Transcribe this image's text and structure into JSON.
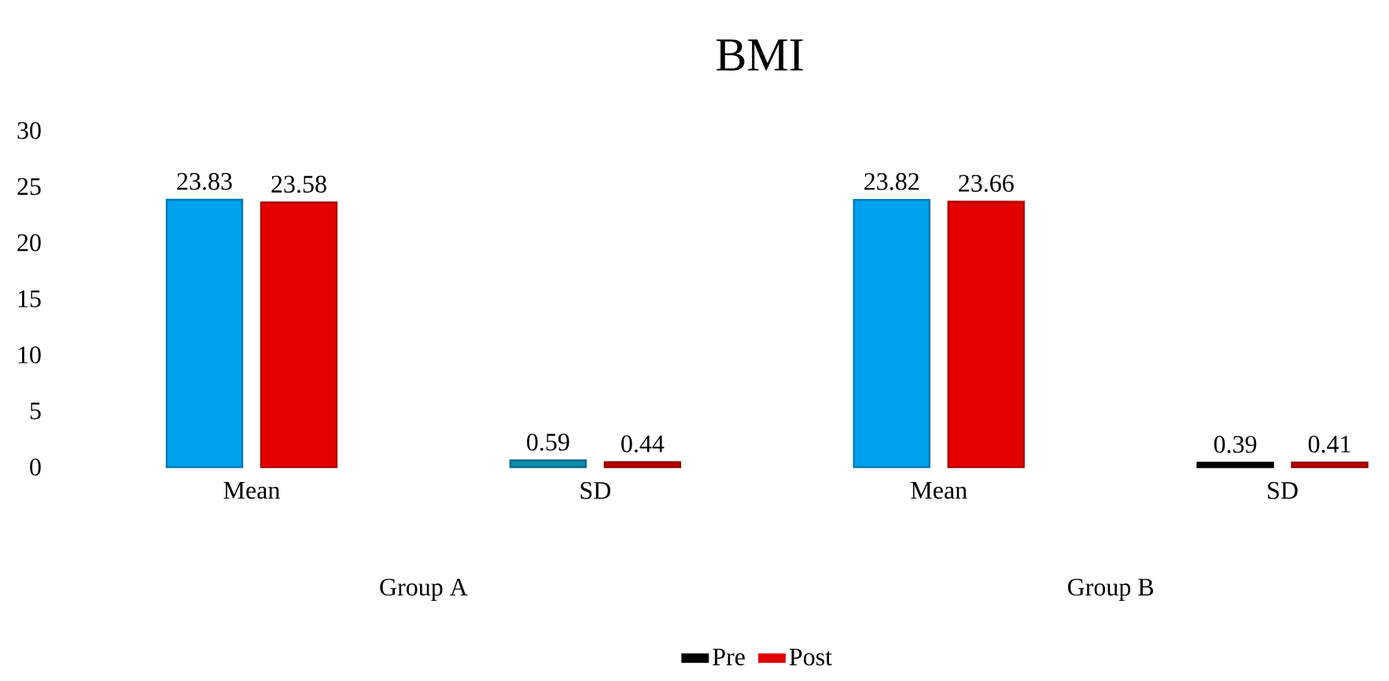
{
  "chart_data": {
    "type": "bar",
    "title": "BMI",
    "categories": [
      "Mean",
      "SD",
      "Mean",
      "SD"
    ],
    "series": [
      {
        "name": "Pre",
        "color": "#000000",
        "colors": [
          "#00a2ed",
          "#0e8eb0",
          "#00a2ed",
          "#000000"
        ],
        "values": [
          23.83,
          0.59,
          23.82,
          0.39
        ]
      },
      {
        "name": "Post",
        "color": "#e00000",
        "colors": [
          "#e50000",
          "#c00000",
          "#e50000",
          "#c00000"
        ],
        "values": [
          23.58,
          0.44,
          23.66,
          0.41
        ]
      }
    ],
    "ylim": [
      0,
      30
    ],
    "yticks": [
      0,
      5,
      10,
      15,
      20,
      25,
      30
    ],
    "data_labels": true,
    "legend": "bottom",
    "grid": false,
    "annotations": [
      "Group A",
      "Group B"
    ]
  }
}
